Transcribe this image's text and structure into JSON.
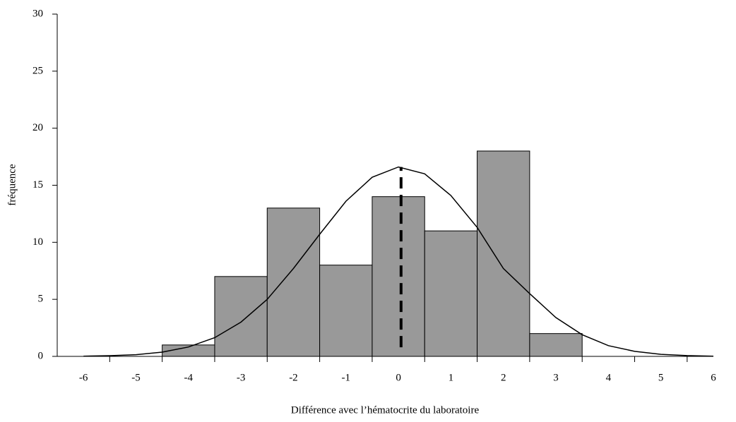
{
  "chart_data": {
    "type": "histogram",
    "x_label": "Différence avec l’hématocrite du laboratoire",
    "y_label": "fréquence",
    "bins": [
      -4.5,
      -3.5,
      -2.5,
      -1.5,
      -0.5,
      0.5,
      1.5,
      2.5,
      3.5
    ],
    "values": [
      1,
      7,
      13,
      8,
      14,
      11,
      18,
      2
    ],
    "color": "#999999",
    "xlim": [
      -6.5,
      6
    ],
    "ylim": [
      0,
      30
    ],
    "xticks": [
      -6,
      -5,
      -4,
      -3,
      -2,
      -1,
      0,
      1,
      2,
      3,
      4,
      5,
      6
    ],
    "minor_xticks": [
      -5.5,
      -4.5,
      -3.5,
      -2.5,
      -1.5,
      -0.5,
      0.5,
      1.5,
      2.5,
      3.5,
      4.5,
      5.5
    ],
    "yticks": [
      0,
      5,
      10,
      15,
      20,
      25,
      30
    ],
    "curve": {
      "x": [
        -6,
        -5.5,
        -5,
        -4.5,
        -4,
        -3.5,
        -3,
        -2.5,
        -2,
        -1.5,
        -1,
        -0.5,
        0,
        0.5,
        1,
        1.5,
        2,
        2.5,
        3,
        3.5,
        4,
        4.5,
        5,
        5.5,
        6
      ],
      "y": [
        0.02,
        0.06,
        0.15,
        0.37,
        0.82,
        1.64,
        3.0,
        5.0,
        7.7,
        10.7,
        13.6,
        15.7,
        16.6,
        16.0,
        14.1,
        11.3,
        7.7,
        5.5,
        3.4,
        1.9,
        0.94,
        0.44,
        0.18,
        0.07,
        0.02
      ]
    },
    "mean_line": {
      "x": 0.05,
      "y": [
        0.8,
        16.6
      ]
    }
  }
}
